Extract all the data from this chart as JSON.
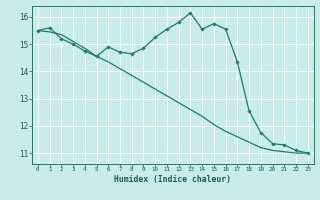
{
  "xlabel": "Humidex (Indice chaleur)",
  "ylabel": "",
  "bg_color": "#c8ece8",
  "grid_color": "#ffffff",
  "line_color": "#1a7a6e",
  "xlim": [
    -0.5,
    23.5
  ],
  "ylim": [
    10.6,
    16.4
  ],
  "yticks": [
    11,
    12,
    13,
    14,
    15,
    16
  ],
  "xticks": [
    0,
    1,
    2,
    3,
    4,
    5,
    6,
    7,
    8,
    9,
    10,
    11,
    12,
    13,
    14,
    15,
    16,
    17,
    18,
    19,
    20,
    21,
    22,
    23
  ],
  "line1_x": [
    0,
    1,
    2,
    3,
    4,
    5,
    6,
    7,
    8,
    9,
    10,
    11,
    12,
    13,
    14,
    15,
    16,
    17,
    18,
    19,
    20,
    21,
    22,
    23
  ],
  "line1_y": [
    15.5,
    15.6,
    15.2,
    15.0,
    14.75,
    14.55,
    14.9,
    14.7,
    14.65,
    14.85,
    15.25,
    15.55,
    15.8,
    16.15,
    15.55,
    15.75,
    15.55,
    14.35,
    12.55,
    11.75,
    11.35,
    11.3,
    11.1,
    11.0
  ],
  "line2_x": [
    0,
    1,
    2,
    3,
    4,
    5,
    6,
    7,
    8,
    9,
    10,
    11,
    12,
    13,
    14,
    15,
    16,
    17,
    18,
    19,
    20,
    21,
    22,
    23
  ],
  "line2_y": [
    15.5,
    15.45,
    15.35,
    15.1,
    14.85,
    14.55,
    14.35,
    14.1,
    13.85,
    13.6,
    13.35,
    13.1,
    12.85,
    12.6,
    12.35,
    12.05,
    11.8,
    11.6,
    11.4,
    11.2,
    11.1,
    11.05,
    11.0,
    11.0
  ]
}
